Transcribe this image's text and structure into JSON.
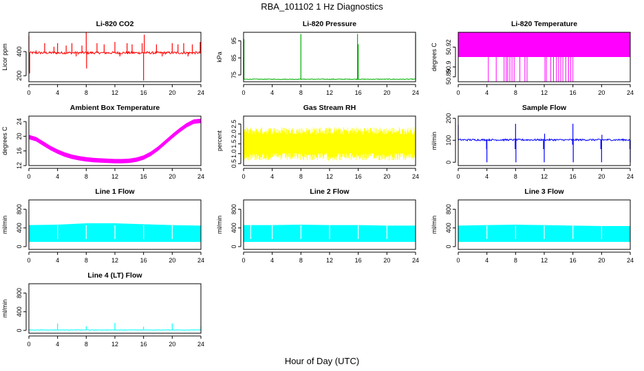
{
  "figure": {
    "title": "RBA_101102  1 Hz Diagnostics",
    "xlabel": "Hour of Day (UTC)"
  },
  "colors": {
    "co2": "#ff0000",
    "pressure": "#00b000",
    "temperature": "#ff00ff",
    "box_temperature": "#ff00ff",
    "rh": "#ffff00",
    "sample_flow": "#0000ff",
    "line_flow": "#00ffff"
  },
  "chart_data": [
    {
      "type": "line",
      "title": "Li-820 CO2",
      "xlabel": "",
      "ylabel": "Licor ppm",
      "xlim": [
        0,
        24
      ],
      "ylim": [
        150,
        560
      ],
      "x_ticks": [
        0,
        4,
        8,
        12,
        16,
        20,
        24
      ],
      "y_ticks": [
        200,
        400
      ],
      "color_key": "co2",
      "baseline": 390,
      "noise": 10,
      "spikes": [
        {
          "x": 0.0,
          "y": 530
        },
        {
          "x": 0.1,
          "y": 220
        },
        {
          "x": 1.0,
          "y": 410
        },
        {
          "x": 2.2,
          "y": 470
        },
        {
          "x": 3.5,
          "y": 440
        },
        {
          "x": 4.0,
          "y": 470
        },
        {
          "x": 5.2,
          "y": 450
        },
        {
          "x": 6.0,
          "y": 470
        },
        {
          "x": 6.6,
          "y": 360
        },
        {
          "x": 7.4,
          "y": 450
        },
        {
          "x": 8.0,
          "y": 560
        },
        {
          "x": 8.05,
          "y": 260
        },
        {
          "x": 9.5,
          "y": 470
        },
        {
          "x": 10.5,
          "y": 460
        },
        {
          "x": 12.0,
          "y": 480
        },
        {
          "x": 12.7,
          "y": 360
        },
        {
          "x": 13.7,
          "y": 470
        },
        {
          "x": 14.4,
          "y": 460
        },
        {
          "x": 15.8,
          "y": 470
        },
        {
          "x": 16.0,
          "y": 160
        },
        {
          "x": 16.1,
          "y": 540
        },
        {
          "x": 17.8,
          "y": 460
        },
        {
          "x": 18.6,
          "y": 360
        },
        {
          "x": 20.0,
          "y": 470
        },
        {
          "x": 20.8,
          "y": 460
        },
        {
          "x": 21.6,
          "y": 470
        },
        {
          "x": 22.2,
          "y": 360
        },
        {
          "x": 22.8,
          "y": 460
        },
        {
          "x": 23.9,
          "y": 480
        }
      ]
    },
    {
      "type": "line",
      "title": "Li-820 Pressure",
      "xlabel": "",
      "ylabel": "kPa",
      "xlim": [
        0,
        24
      ],
      "ylim": [
        71,
        100
      ],
      "x_ticks": [
        0,
        4,
        8,
        12,
        16,
        20,
        24
      ],
      "y_ticks": [
        75,
        85,
        95
      ],
      "color_key": "pressure",
      "baseline": 72.5,
      "noise": 0.2,
      "spikes": [
        {
          "x": 0.0,
          "y": 85
        },
        {
          "x": 0.05,
          "y": 96
        },
        {
          "x": 8.0,
          "y": 99
        },
        {
          "x": 15.9,
          "y": 99
        },
        {
          "x": 16.0,
          "y": 93
        },
        {
          "x": 24.0,
          "y": 99
        }
      ]
    },
    {
      "type": "line",
      "title": "Li-820 Temperature",
      "xlabel": "",
      "ylabel": "degrees C",
      "xlim": [
        0,
        24
      ],
      "ylim": [
        50.885,
        50.935
      ],
      "x_ticks": [
        0,
        4,
        8,
        12,
        16,
        20,
        24
      ],
      "y_ticks": [
        50.89,
        50.9,
        50.92
      ],
      "y_tick_labels": [
        "50.89",
        "50.9",
        "50.92"
      ],
      "color_key": "temperature",
      "band": [
        50.91,
        50.935
      ],
      "drops_to": 50.885,
      "drops_x": [
        4.2,
        5.3,
        6.4,
        6.7,
        6.9,
        7.2,
        7.5,
        7.8,
        8.6,
        9.3,
        9.6,
        12.1,
        12.3,
        12.9,
        13.3,
        13.7,
        14.0,
        14.3,
        14.6,
        15.0,
        15.4,
        15.7,
        16.0
      ]
    },
    {
      "type": "line",
      "title": "Ambient Box Temperature",
      "xlabel": "",
      "ylabel": "degrees C",
      "xlim": [
        0,
        24
      ],
      "ylim": [
        12,
        25.5
      ],
      "x_ticks": [
        0,
        4,
        8,
        12,
        16,
        20,
        24
      ],
      "y_ticks": [
        12,
        16,
        20,
        24
      ],
      "color_key": "box_temperature",
      "x": [
        0,
        1,
        2,
        3,
        4,
        5,
        6,
        7,
        8,
        9,
        10,
        11,
        12,
        13,
        14,
        15,
        16,
        17,
        18,
        19,
        20,
        21,
        22,
        23,
        24
      ],
      "values": [
        19.8,
        19.2,
        18.0,
        16.8,
        15.8,
        15.0,
        14.4,
        14.0,
        13.7,
        13.5,
        13.4,
        13.3,
        13.2,
        13.2,
        13.3,
        13.6,
        14.2,
        15.2,
        16.6,
        18.3,
        20.0,
        21.6,
        23.0,
        24.0,
        24.2
      ],
      "band_width": 1.2
    },
    {
      "type": "line",
      "title": "Gas Stream RH",
      "xlabel": "",
      "ylabel": "percent",
      "xlim": [
        0,
        24
      ],
      "ylim": [
        0.4,
        2.9
      ],
      "x_ticks": [
        0,
        4,
        8,
        12,
        16,
        20,
        24
      ],
      "y_ticks": [
        0.5,
        1.0,
        1.5,
        2.0,
        2.5
      ],
      "y_tick_labels": [
        "0.5",
        "1.0",
        "1.5",
        "2.0",
        "2.5"
      ],
      "color_key": "rh",
      "center": 1.5,
      "half_range": 0.85
    },
    {
      "type": "line",
      "title": "Sample Flow",
      "xlabel": "",
      "ylabel": "ml/min",
      "xlim": [
        0,
        24
      ],
      "ylim": [
        -15,
        210
      ],
      "x_ticks": [
        0,
        4,
        8,
        12,
        16,
        20,
        24
      ],
      "y_ticks": [
        0,
        100,
        200
      ],
      "color_key": "sample_flow",
      "baseline": 102,
      "noise": 4,
      "spikes": [
        {
          "x": 0.0,
          "y": 170
        },
        {
          "x": 3.95,
          "y": 60
        },
        {
          "x": 4.0,
          "y": 0
        },
        {
          "x": 7.95,
          "y": 60
        },
        {
          "x": 8.0,
          "y": 175
        },
        {
          "x": 8.05,
          "y": 0
        },
        {
          "x": 11.9,
          "y": 60
        },
        {
          "x": 12.0,
          "y": 0
        },
        {
          "x": 12.05,
          "y": 130
        },
        {
          "x": 15.95,
          "y": 80
        },
        {
          "x": 16.0,
          "y": 175
        },
        {
          "x": 16.05,
          "y": 0
        },
        {
          "x": 19.9,
          "y": 60
        },
        {
          "x": 20.0,
          "y": 0
        },
        {
          "x": 20.05,
          "y": 125
        },
        {
          "x": 23.95,
          "y": 60
        },
        {
          "x": 24.0,
          "y": 0
        }
      ]
    },
    {
      "type": "area",
      "title": "Line 1 Flow",
      "xlabel": "",
      "ylabel": "ml/min",
      "xlim": [
        0,
        24
      ],
      "ylim": [
        -60,
        1000
      ],
      "x_ticks": [
        0,
        4,
        8,
        12,
        16,
        20,
        24
      ],
      "y_ticks": [
        0,
        400,
        800
      ],
      "color_key": "line_flow",
      "low": 100,
      "high": [
        [
          0,
          460
        ],
        [
          4,
          470
        ],
        [
          8,
          500
        ],
        [
          12,
          500
        ],
        [
          16,
          480
        ],
        [
          20,
          460
        ],
        [
          24,
          450
        ]
      ],
      "gaps": [
        4,
        8,
        12,
        16,
        20
      ]
    },
    {
      "type": "area",
      "title": "Line 2 Flow",
      "xlabel": "",
      "ylabel": "ml/min",
      "xlim": [
        0,
        24
      ],
      "ylim": [
        -60,
        1000
      ],
      "x_ticks": [
        0,
        4,
        8,
        12,
        16,
        20,
        24
      ],
      "y_ticks": [
        0,
        400,
        800
      ],
      "color_key": "line_flow",
      "low": 100,
      "high": [
        [
          0,
          460
        ],
        [
          4,
          460
        ],
        [
          8,
          470
        ],
        [
          12,
          460
        ],
        [
          16,
          460
        ],
        [
          20,
          450
        ],
        [
          24,
          450
        ]
      ],
      "gaps": [
        1,
        4,
        8,
        12,
        16,
        20
      ]
    },
    {
      "type": "area",
      "title": "Line 3 Flow",
      "xlabel": "",
      "ylabel": "ml/min",
      "xlim": [
        0,
        24
      ],
      "ylim": [
        -60,
        1000
      ],
      "x_ticks": [
        0,
        4,
        8,
        12,
        16,
        20,
        24
      ],
      "y_ticks": [
        0,
        400,
        800
      ],
      "color_key": "line_flow",
      "low": 100,
      "high": [
        [
          0,
          450
        ],
        [
          4,
          460
        ],
        [
          8,
          470
        ],
        [
          12,
          460
        ],
        [
          16,
          450
        ],
        [
          20,
          440
        ],
        [
          24,
          440
        ]
      ],
      "gaps": [
        4,
        8,
        12,
        16,
        20
      ]
    },
    {
      "type": "line",
      "title": "Line 4 (LT) Flow",
      "xlabel": "",
      "ylabel": "ml/min",
      "xlim": [
        0,
        24
      ],
      "ylim": [
        -60,
        1000
      ],
      "x_ticks": [
        0,
        4,
        8,
        12,
        16,
        20,
        24
      ],
      "y_ticks": [
        0,
        400,
        800
      ],
      "color_key": "line_flow",
      "baseline": 10,
      "noise": 6,
      "spikes": [
        {
          "x": 4.0,
          "y": 150
        },
        {
          "x": 8.0,
          "y": 90
        },
        {
          "x": 12.0,
          "y": 160
        },
        {
          "x": 16.0,
          "y": 80
        },
        {
          "x": 20.0,
          "y": 150
        },
        {
          "x": 24.0,
          "y": 90
        }
      ]
    }
  ]
}
